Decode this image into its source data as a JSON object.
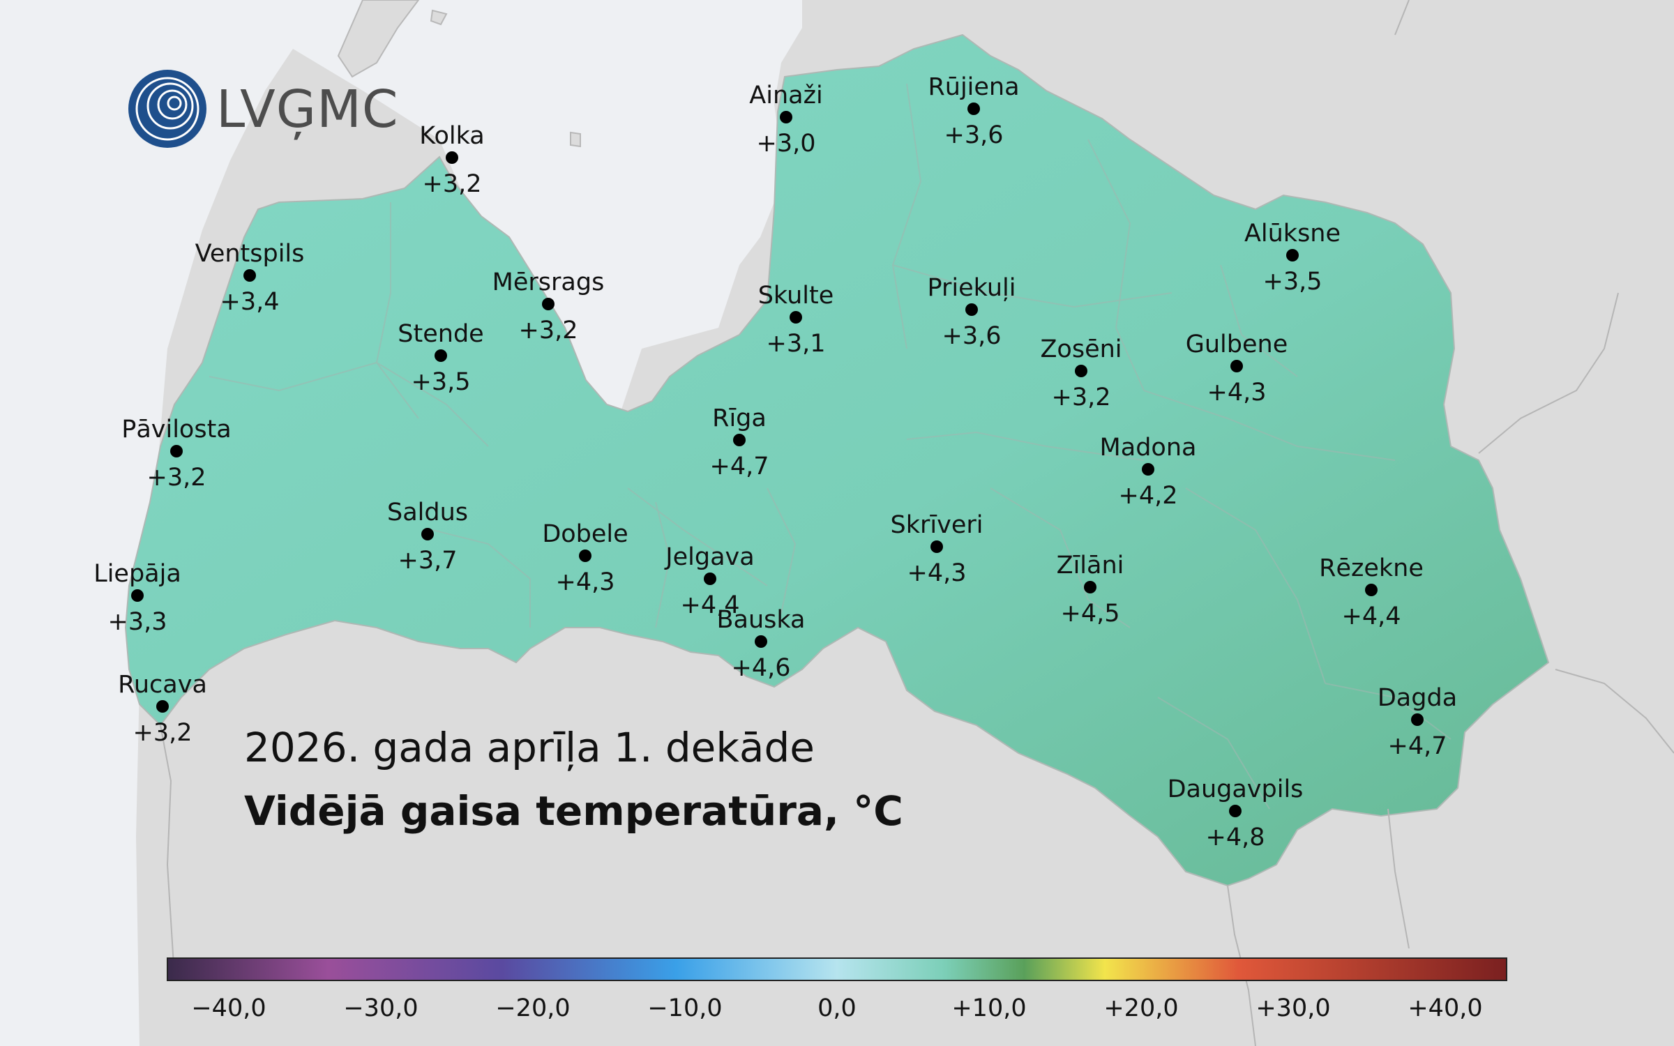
{
  "logo": {
    "text": "LVĢMC",
    "icon": "lvgmc-logo-icon"
  },
  "title": {
    "line1": "2026. gada aprīļa 1. dekāde",
    "line2": "Vidējā gaisa temperatūra, °C"
  },
  "stations": [
    {
      "id": "kolka",
      "name": "Kolka",
      "value": "+3,2"
    },
    {
      "id": "ainazi",
      "name": "Ainaži",
      "value": "+3,0"
    },
    {
      "id": "rujiena",
      "name": "Rūjiena",
      "value": "+3,6"
    },
    {
      "id": "ventspils",
      "name": "Ventspils",
      "value": "+3,4"
    },
    {
      "id": "mersrags",
      "name": "Mērsrags",
      "value": "+3,2"
    },
    {
      "id": "skulte",
      "name": "Skulte",
      "value": "+3,1"
    },
    {
      "id": "priekuli",
      "name": "Priekuļi",
      "value": "+3,6"
    },
    {
      "id": "aluksne",
      "name": "Alūksne",
      "value": "+3,5"
    },
    {
      "id": "stende",
      "name": "Stende",
      "value": "+3,5"
    },
    {
      "id": "zoseni",
      "name": "Zosēni",
      "value": "+3,2"
    },
    {
      "id": "gulbene",
      "name": "Gulbene",
      "value": "+4,3"
    },
    {
      "id": "pavilosta",
      "name": "Pāvilosta",
      "value": "+3,2"
    },
    {
      "id": "riga",
      "name": "Rīga",
      "value": "+4,7"
    },
    {
      "id": "madona",
      "name": "Madona",
      "value": "+4,2"
    },
    {
      "id": "saldus",
      "name": "Saldus",
      "value": "+3,7"
    },
    {
      "id": "dobele",
      "name": "Dobele",
      "value": "+4,3"
    },
    {
      "id": "jelgava",
      "name": "Jelgava",
      "value": "+4,4"
    },
    {
      "id": "skriveri",
      "name": "Skrīveri",
      "value": "+4,3"
    },
    {
      "id": "zilani",
      "name": "Zīlāni",
      "value": "+4,5"
    },
    {
      "id": "rezekne",
      "name": "Rēzekne",
      "value": "+4,4"
    },
    {
      "id": "liepaja",
      "name": "Liepāja",
      "value": "+3,3"
    },
    {
      "id": "bauska",
      "name": "Bauska",
      "value": "+4,6"
    },
    {
      "id": "rucava",
      "name": "Rucava",
      "value": "+3,2"
    },
    {
      "id": "dagda",
      "name": "Dagda",
      "value": "+4,7"
    },
    {
      "id": "daugavpils",
      "name": "Daugavpils",
      "value": "+4,8"
    }
  ],
  "colorbar": {
    "ticks": [
      "−40,0",
      "−30,0",
      "−20,0",
      "−10,0",
      "0,0",
      "+10,0",
      "+20,0",
      "+30,0",
      "+40,0"
    ],
    "colors": [
      "#3a2a4a",
      "#9a4f9a",
      "#5a4aa0",
      "#3aa0e8",
      "#b6e4ee",
      "#7ccfb8",
      "#5aa05a",
      "#f2e44c",
      "#e0583a",
      "#7a2020"
    ]
  },
  "colors": {
    "sea": "#eef0f3",
    "land": "#dcdcdc",
    "map_fill_west": "#80d6c2",
    "map_fill_east": "#6bbf9f",
    "logo_blue": "#1e4f8c"
  }
}
